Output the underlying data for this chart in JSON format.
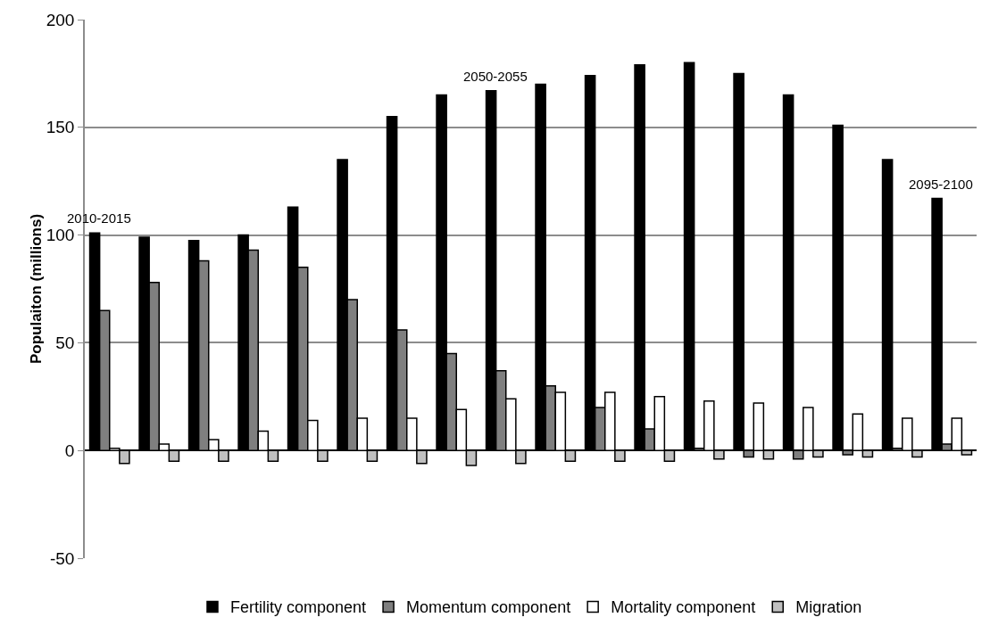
{
  "chart_data": {
    "type": "bar",
    "ylabel": "Populaiton (millions)",
    "categories": [
      "2010-2015",
      null,
      null,
      null,
      null,
      null,
      null,
      null,
      "2050-2055",
      null,
      null,
      null,
      null,
      null,
      null,
      null,
      null,
      "2095-2100"
    ],
    "series": [
      {
        "name": "Fertility component",
        "color": "#000000",
        "values": [
          101,
          99,
          97.5,
          100,
          113,
          135,
          155,
          165,
          167,
          170,
          174,
          179,
          180,
          175,
          165,
          151,
          135,
          117
        ]
      },
      {
        "name": "Momentum component",
        "color": "#7f7f7f",
        "values": [
          65,
          78,
          88,
          93,
          85,
          70,
          56,
          45,
          37,
          30,
          20,
          10,
          1,
          -3,
          -4,
          -2,
          1,
          3
        ]
      },
      {
        "name": "Mortality component",
        "color": "#ffffff",
        "values": [
          1,
          3,
          5,
          9,
          14,
          15,
          15,
          19,
          24,
          27,
          27,
          25,
          23,
          22,
          20,
          17,
          15,
          15
        ]
      },
      {
        "name": "Migration",
        "color": "#c0c0c0",
        "values": [
          -6,
          -5,
          -5,
          -5,
          -5,
          -5,
          -6,
          -7,
          -6,
          -5,
          -5,
          -5,
          -4,
          -4,
          -3,
          -3,
          -3,
          -2
        ]
      }
    ],
    "ylim": [
      -50,
      200
    ],
    "yticks": [
      -50,
      0,
      50,
      100,
      150,
      200
    ],
    "grid": "y",
    "legend": "bottom",
    "tick_labels": "y"
  }
}
